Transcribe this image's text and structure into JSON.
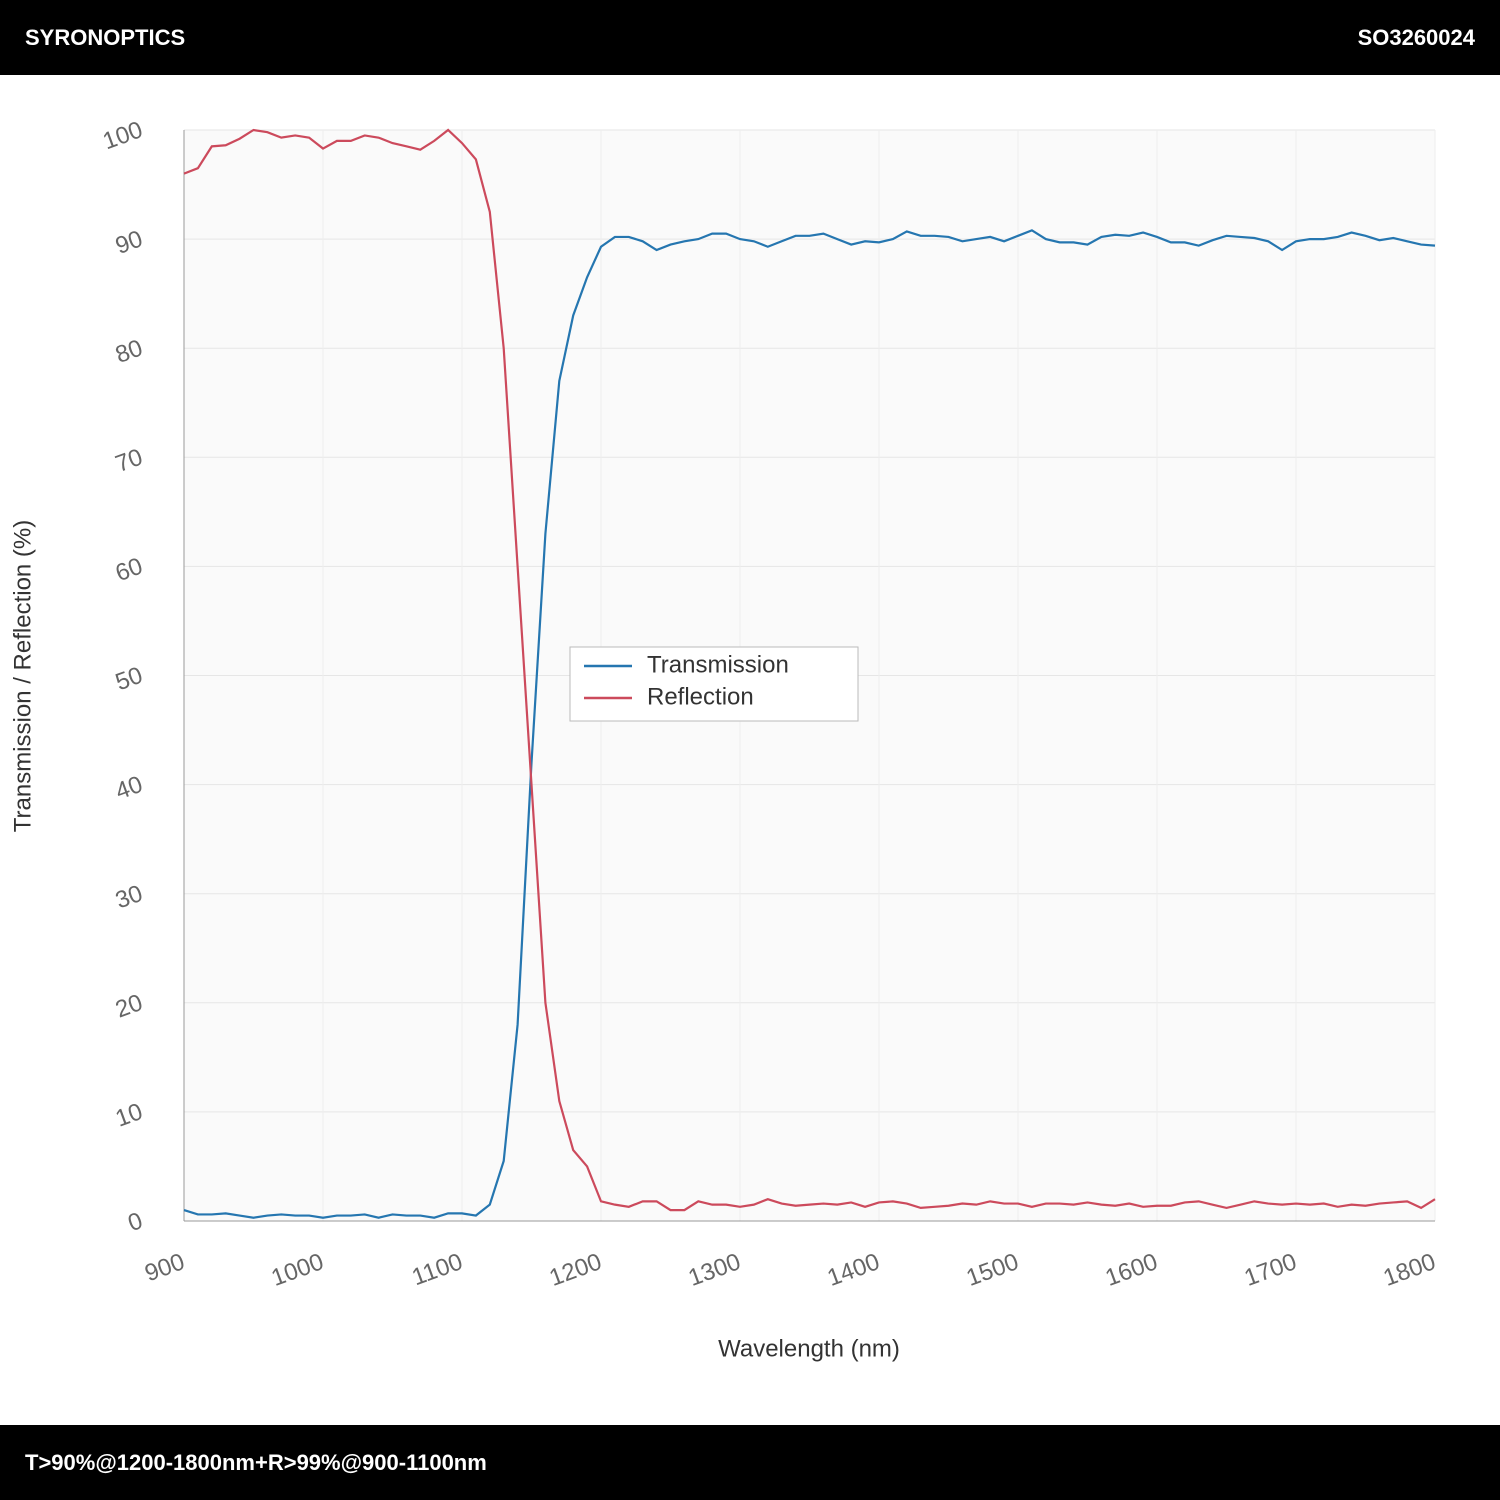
{
  "header": {
    "brand": "SYRONOPTICS",
    "code": "SO3260024"
  },
  "footer": {
    "spec": "T>90%@1200-1800nm+R>99%@900-1100nm"
  },
  "chart_data": {
    "type": "line",
    "xlabel": "Wavelength (nm)",
    "ylabel": "Transmission / Reflection (%)",
    "x": [
      900,
      910,
      920,
      930,
      940,
      950,
      960,
      970,
      980,
      990,
      1000,
      1010,
      1020,
      1030,
      1040,
      1050,
      1060,
      1070,
      1080,
      1090,
      1100,
      1110,
      1120,
      1130,
      1140,
      1150,
      1160,
      1170,
      1180,
      1190,
      1200,
      1210,
      1220,
      1230,
      1240,
      1250,
      1260,
      1270,
      1280,
      1290,
      1300,
      1310,
      1320,
      1330,
      1340,
      1350,
      1360,
      1370,
      1380,
      1390,
      1400,
      1410,
      1420,
      1430,
      1440,
      1450,
      1460,
      1470,
      1480,
      1490,
      1500,
      1510,
      1520,
      1530,
      1540,
      1550,
      1560,
      1570,
      1580,
      1590,
      1600,
      1610,
      1620,
      1630,
      1640,
      1650,
      1660,
      1670,
      1680,
      1690,
      1700,
      1710,
      1720,
      1730,
      1740,
      1750,
      1760,
      1770,
      1780,
      1790,
      1800
    ],
    "series": [
      {
        "name": "Transmission",
        "color": "#2576b0",
        "values": [
          1.0,
          0.6,
          0.6,
          0.7,
          0.5,
          0.3,
          0.5,
          0.6,
          0.5,
          0.5,
          0.3,
          0.5,
          0.5,
          0.6,
          0.3,
          0.6,
          0.5,
          0.5,
          0.3,
          0.7,
          0.7,
          0.5,
          1.5,
          5.5,
          18,
          42,
          63,
          77,
          83,
          86.5,
          89.3,
          90.2,
          90.2,
          89.8,
          89,
          89.5,
          89.8,
          90,
          90.5,
          90.5,
          90,
          89.8,
          89.3,
          89.8,
          90.3,
          90.3,
          90.5,
          90,
          89.5,
          89.8,
          89.7,
          90,
          90.7,
          90.3,
          90.3,
          90.2,
          89.8,
          90,
          90.2,
          89.8,
          90.3,
          90.8,
          90,
          89.7,
          89.7,
          89.5,
          90.2,
          90.4,
          90.3,
          90.6,
          90.2,
          89.7,
          89.7,
          89.4,
          89.9,
          90.3,
          90.2,
          90.1,
          89.8,
          89,
          89.8,
          90,
          90,
          90.2,
          90.6,
          90.3,
          89.9,
          90.1,
          89.8,
          89.5,
          89.4
        ]
      },
      {
        "name": "Reflection",
        "color": "#cc4a5c",
        "values": [
          96,
          96.5,
          98.5,
          98.6,
          99.2,
          100,
          99.8,
          99.3,
          99.5,
          99.3,
          98.3,
          99,
          99,
          99.5,
          99.3,
          98.8,
          98.5,
          98.2,
          99,
          100,
          98.8,
          97.3,
          92.5,
          80,
          60,
          40,
          20,
          11,
          6.5,
          5,
          1.8,
          1.5,
          1.3,
          1.8,
          1.8,
          1,
          1,
          1.8,
          1.5,
          1.5,
          1.3,
          1.5,
          2,
          1.6,
          1.4,
          1.5,
          1.6,
          1.5,
          1.7,
          1.3,
          1.7,
          1.8,
          1.6,
          1.2,
          1.3,
          1.4,
          1.6,
          1.5,
          1.8,
          1.6,
          1.6,
          1.3,
          1.6,
          1.6,
          1.5,
          1.7,
          1.5,
          1.4,
          1.6,
          1.3,
          1.4,
          1.4,
          1.7,
          1.8,
          1.5,
          1.2,
          1.5,
          1.8,
          1.6,
          1.5,
          1.6,
          1.5,
          1.6,
          1.3,
          1.5,
          1.4,
          1.6,
          1.7,
          1.8,
          1.2,
          2.0
        ]
      }
    ],
    "xlim": [
      900,
      1800
    ],
    "ylim": [
      0,
      100
    ],
    "xticks": [
      900,
      1000,
      1100,
      1200,
      1300,
      1400,
      1500,
      1600,
      1700,
      1800
    ],
    "yticks": [
      0,
      10,
      20,
      30,
      40,
      50,
      60,
      70,
      80,
      90,
      100
    ],
    "grid": true,
    "legend": "center"
  }
}
